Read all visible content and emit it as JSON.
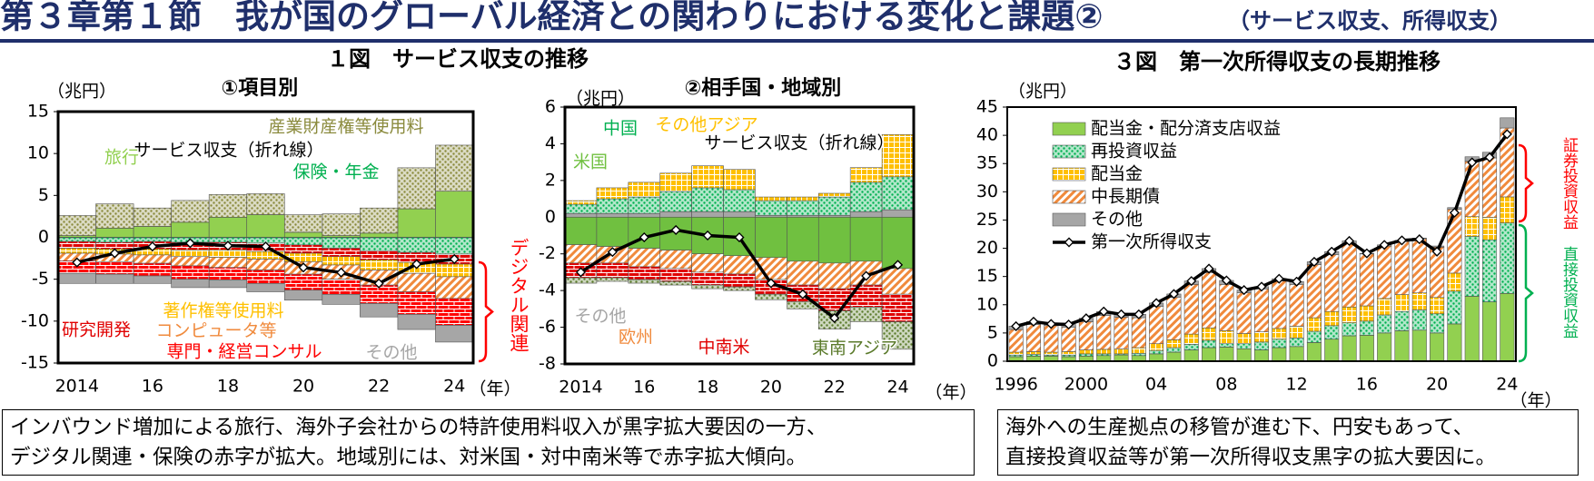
{
  "header": {
    "title": "第３章第１節　我が国のグローバル経済との関わりにおける変化と課題②",
    "subtitle": "（サービス収支、所得収支）"
  },
  "group_title": "１図　サービス収支の推移",
  "chart_data": [
    {
      "type": "bar",
      "stacked": true,
      "title": "①項目別",
      "ylabel": "（兆円）",
      "xlabel": "（年）",
      "categories": [
        "2014",
        null,
        "16",
        null,
        "18",
        null,
        "20",
        null,
        "22",
        null,
        "24"
      ],
      "ylim": [
        -15,
        15
      ],
      "yticks": [
        -15,
        -10,
        -5,
        0,
        5,
        10,
        15
      ],
      "series": [
        {
          "name": "旅行",
          "color": "#92d050",
          "pattern": "solid",
          "values": [
            0.2,
            1.1,
            1.3,
            1.8,
            2.4,
            2.7,
            0.6,
            0.2,
            0.5,
            3.4,
            5.5
          ]
        },
        {
          "name": "産業財産権等使用料",
          "color": "#8a8a3c",
          "pattern": "dots",
          "values": [
            2.4,
            2.9,
            2.2,
            2.6,
            2.7,
            2.5,
            2.1,
            2.6,
            3.0,
            4.9,
            5.5
          ]
        },
        {
          "name": "保険・年金",
          "color": "#00b050",
          "pattern": "dots",
          "values": [
            -0.5,
            -0.6,
            -0.5,
            -0.6,
            -0.6,
            -0.7,
            -0.9,
            -1.3,
            -1.6,
            -1.8,
            -2.0
          ]
        },
        {
          "name": "研究開発",
          "color": "#e00000",
          "pattern": "brick",
          "values": [
            -0.8,
            -0.8,
            -0.9,
            -0.9,
            -0.9,
            -1.0,
            -1.0,
            -1.0,
            -1.1,
            -1.2,
            -1.2
          ]
        },
        {
          "name": "著作権等使用料",
          "color": "#ffc000",
          "pattern": "grid",
          "values": [
            -0.6,
            -0.6,
            -0.7,
            -0.8,
            -0.9,
            -0.9,
            -1.0,
            -1.0,
            -1.2,
            -1.3,
            -1.5
          ]
        },
        {
          "name": "コンピュータ等",
          "color": "#f08a3c",
          "pattern": "hatch",
          "values": [
            -0.9,
            -0.9,
            -1.0,
            -1.1,
            -1.2,
            -1.3,
            -1.5,
            -1.7,
            -1.8,
            -2.2,
            -2.6
          ]
        },
        {
          "name": "専門・経営コンサル",
          "color": "#ff0000",
          "pattern": "brick",
          "values": [
            -1.5,
            -1.5,
            -1.5,
            -1.6,
            -1.5,
            -1.6,
            -1.9,
            -1.8,
            -2.2,
            -2.7,
            -3.2
          ]
        },
        {
          "name": "その他",
          "color": "#a6a6a6",
          "pattern": "solid",
          "values": [
            -1.2,
            -1.1,
            -0.9,
            -1.0,
            -0.9,
            -1.0,
            -1.2,
            -1.2,
            -1.6,
            -1.8,
            -2.0
          ]
        },
        {
          "name": "サービス収支（折れ線）",
          "type": "line",
          "color": "#000000",
          "values": [
            -3.0,
            -1.9,
            -1.1,
            -0.7,
            -1.0,
            -1.1,
            -3.6,
            -4.2,
            -5.5,
            -3.2,
            -2.6
          ]
        }
      ],
      "annotations": [
        {
          "text": "デジタル関連",
          "color": "#ff0000"
        }
      ]
    },
    {
      "type": "bar",
      "stacked": true,
      "title": "②相手国・地域別",
      "ylabel": "（兆円）",
      "xlabel": "（年）",
      "categories": [
        "2014",
        null,
        "16",
        null,
        "18",
        null,
        "20",
        null,
        "22",
        null,
        "24"
      ],
      "ylim": [
        -8,
        6
      ],
      "yticks": [
        -8,
        -6,
        -4,
        -2,
        0,
        2,
        4,
        6
      ],
      "series": [
        {
          "name": "その他",
          "color": "#a6a6a6",
          "pattern": "solid",
          "values": [
            0.2,
            0.2,
            0.2,
            0.3,
            0.3,
            0.3,
            0.1,
            0.1,
            0.1,
            0.3,
            0.4
          ]
        },
        {
          "name": "中国",
          "color": "#00b050",
          "pattern": "dots",
          "values": [
            0.5,
            0.8,
            0.9,
            1.1,
            1.3,
            1.2,
            0.8,
            0.8,
            1.0,
            1.6,
            1.8
          ]
        },
        {
          "name": "その他アジア",
          "color": "#ffc000",
          "pattern": "grid",
          "values": [
            0.2,
            0.6,
            0.8,
            1.0,
            1.2,
            1.1,
            0.2,
            0.2,
            0.2,
            0.8,
            2.3
          ]
        },
        {
          "name": "米国",
          "color": "#70c040",
          "pattern": "solid",
          "values": [
            -1.5,
            -1.6,
            -1.7,
            -1.8,
            -2.0,
            -2.1,
            -2.2,
            -2.4,
            -2.5,
            -2.4,
            -2.8
          ]
        },
        {
          "name": "欧州",
          "color": "#f08a3c",
          "pattern": "hatch",
          "values": [
            -1.0,
            -0.9,
            -1.0,
            -1.0,
            -1.0,
            -1.0,
            -1.2,
            -1.3,
            -1.4,
            -1.3,
            -1.4
          ]
        },
        {
          "name": "中南米",
          "color": "#e00000",
          "pattern": "brick",
          "values": [
            -0.8,
            -0.8,
            -0.7,
            -0.7,
            -0.7,
            -0.7,
            -0.8,
            -0.9,
            -1.2,
            -1.2,
            -1.5
          ]
        },
        {
          "name": "東南アジア",
          "color": "#5a7a2a",
          "pattern": "dots",
          "values": [
            -0.3,
            -0.2,
            -0.2,
            -0.2,
            -0.2,
            -0.2,
            -0.3,
            -0.4,
            -1.0,
            -0.8,
            -1.5
          ]
        },
        {
          "name": "サービス収支（折れ線）",
          "type": "line",
          "color": "#000000",
          "values": [
            -3.0,
            -1.9,
            -1.1,
            -0.7,
            -1.0,
            -1.1,
            -3.6,
            -4.2,
            -5.5,
            -3.2,
            -2.6
          ]
        }
      ]
    },
    {
      "type": "bar",
      "stacked": true,
      "title": "３図　第一次所得収支の長期推移",
      "ylabel": "（兆円）",
      "xlabel": "（年）",
      "categories": [
        "1996",
        null,
        null,
        null,
        "2000",
        null,
        null,
        null,
        "04",
        null,
        null,
        null,
        "08",
        null,
        null,
        null,
        "12",
        null,
        null,
        null,
        "16",
        null,
        null,
        null,
        "20",
        null,
        null,
        null,
        "24"
      ],
      "ylim": [
        0,
        45
      ],
      "yticks": [
        0,
        5,
        10,
        15,
        20,
        25,
        30,
        35,
        40,
        45
      ],
      "legend": "upper-left",
      "series": [
        {
          "name": "配当金・配分済支店収益",
          "color": "#92d050",
          "pattern": "solid",
          "values": [
            0.8,
            0.9,
            0.9,
            0.8,
            0.9,
            1.0,
            1.1,
            1.0,
            1.3,
            1.6,
            2.0,
            2.4,
            2.5,
            2.2,
            2.0,
            2.4,
            2.6,
            3.3,
            3.9,
            4.5,
            4.6,
            5.0,
            5.4,
            5.5,
            5.0,
            6.6,
            11.5,
            10.5,
            12.0
          ]
        },
        {
          "name": "再投資収益",
          "color": "#00b050",
          "pattern": "dots",
          "values": [
            0.3,
            0.3,
            0.2,
            0.3,
            0.4,
            0.3,
            0.2,
            0.4,
            0.6,
            0.8,
            1.0,
            1.3,
            0.6,
            0.9,
            1.4,
            1.5,
            1.5,
            2.0,
            2.4,
            2.3,
            2.5,
            3.2,
            3.4,
            3.6,
            3.4,
            5.8,
            10.6,
            11.0,
            12.5
          ]
        },
        {
          "name": "配当金",
          "color": "#ffc000",
          "pattern": "grid",
          "values": [
            0.5,
            0.5,
            0.5,
            0.6,
            0.7,
            0.8,
            0.9,
            1.0,
            1.2,
            1.4,
            1.8,
            2.2,
            2.3,
            1.8,
            1.8,
            1.9,
            2.1,
            2.4,
            2.5,
            2.8,
            2.7,
            2.9,
            3.0,
            3.0,
            2.9,
            3.2,
            3.5,
            4.0,
            4.6
          ]
        },
        {
          "name": "中長期債",
          "color": "#f08a3c",
          "pattern": "hatch",
          "values": [
            4.0,
            4.8,
            4.7,
            4.3,
            5.0,
            6.0,
            5.6,
            5.3,
            6.6,
            7.5,
            8.8,
            9.8,
            8.2,
            7.2,
            7.6,
            8.4,
            7.4,
            9.4,
            10.1,
            11.3,
            9.2,
            9.3,
            9.4,
            9.6,
            8.9,
            11.3,
            9.8,
            10.5,
            12.2
          ]
        },
        {
          "name": "その他",
          "color": "#a6a6a6",
          "pattern": "solid",
          "values": [
            0.6,
            0.5,
            0.4,
            0.5,
            0.6,
            0.7,
            0.5,
            0.6,
            0.6,
            0.6,
            0.6,
            0.7,
            0.7,
            0.5,
            0.4,
            0.4,
            0.5,
            0.5,
            0.5,
            0.4,
            0.1,
            0.2,
            0.2,
            0.1,
            0.2,
            0.3,
            0.8,
            1.0,
            1.8
          ]
        },
        {
          "name": "第一次所得収支",
          "type": "line",
          "color": "#000000",
          "values": [
            6.2,
            7.0,
            6.6,
            6.5,
            7.6,
            8.8,
            8.3,
            8.3,
            10.3,
            11.9,
            14.2,
            16.4,
            14.3,
            12.6,
            13.2,
            14.6,
            14.1,
            17.6,
            19.4,
            21.3,
            19.1,
            20.6,
            21.4,
            21.6,
            19.4,
            26.3,
            35.2,
            36.1,
            40.2
          ]
        }
      ],
      "annotations": [
        {
          "text": "証券投資収益",
          "color": "#ff0000"
        },
        {
          "text": "直接投資収益",
          "color": "#00b050"
        }
      ]
    }
  ],
  "notes": [
    {
      "lines": [
        "インバウンド増加による旅行、海外子会社からの特許使用料収入が黒字拡大要因の一方、",
        "デジタル関連・保険の赤字が拡大。地域別には、対米国・対中南米等で赤字拡大傾向。"
      ]
    },
    {
      "lines": [
        "海外への生産拠点の移管が進む下、円安もあって、",
        "直接投資収益等が第一次所得収支黒字の拡大要因に。"
      ]
    }
  ]
}
